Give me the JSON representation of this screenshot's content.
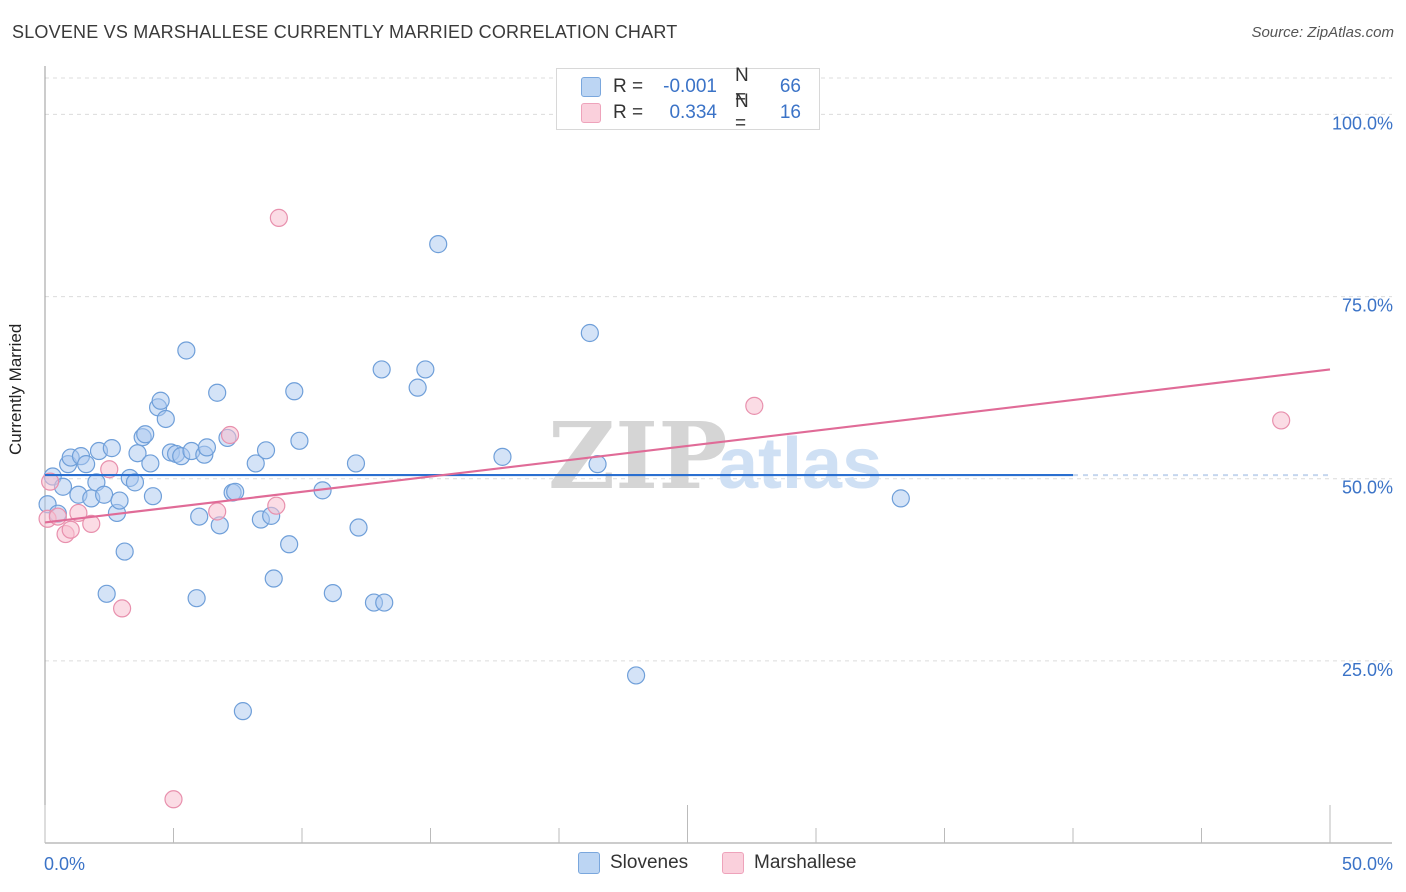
{
  "title": "SLOVENE VS MARSHALLESE CURRENTLY MARRIED CORRELATION CHART",
  "source": "Source: ZipAtlas.com",
  "watermark": {
    "zip": "ZIP",
    "atlas": "atlas"
  },
  "legend": {
    "rows": [
      {
        "r_label": "R =",
        "r_value": "-0.001",
        "n_label": "N =",
        "n_value": "66"
      },
      {
        "r_label": "R =",
        "r_value": "0.334",
        "n_label": "N =",
        "n_value": "16"
      }
    ]
  },
  "bottom_legend": {
    "series1": "Slovenes",
    "series2": "Marshallese"
  },
  "colors": {
    "slovenes_fill": "#a9c8f0",
    "slovenes_stroke": "#6f9fd9",
    "slovenes_line": "#2a6fd0",
    "marshallese_fill": "#f7c0d0",
    "marshallese_stroke": "#e890ad",
    "marshallese_line": "#e06b97",
    "axis_label": "#3b73c7"
  },
  "chart_data": {
    "type": "scatter",
    "title": "SLOVENE VS MARSHALLESE CURRENTLY MARRIED CORRELATION CHART",
    "xlabel": "",
    "ylabel": "Currently Married",
    "xlim": [
      0,
      50
    ],
    "ylim": [
      0,
      105
    ],
    "x_tick_labels": [
      "0.0%",
      "50.0%"
    ],
    "y_ticks": [
      25,
      50,
      75,
      100
    ],
    "y_tick_labels": [
      "25.0%",
      "50.0%",
      "75.0%",
      "100.0%"
    ],
    "grid": true,
    "legend_position": "top-center",
    "series": [
      {
        "name": "Slovenes",
        "r": -0.001,
        "n": 66,
        "trend": {
          "x0": 0,
          "y0": 50.5,
          "x1": 40,
          "y1": 50.5,
          "dashed_to": 50
        },
        "points": [
          [
            0.1,
            46.5
          ],
          [
            0.3,
            50.3
          ],
          [
            0.5,
            45.2
          ],
          [
            0.7,
            48.9
          ],
          [
            0.9,
            52.0
          ],
          [
            1.0,
            52.9
          ],
          [
            1.3,
            47.8
          ],
          [
            1.4,
            53.1
          ],
          [
            1.6,
            52.0
          ],
          [
            1.8,
            47.3
          ],
          [
            2.0,
            49.5
          ],
          [
            2.1,
            53.8
          ],
          [
            2.3,
            47.8
          ],
          [
            2.4,
            34.2
          ],
          [
            2.6,
            54.2
          ],
          [
            2.8,
            45.3
          ],
          [
            2.9,
            47.0
          ],
          [
            3.1,
            40.0
          ],
          [
            3.3,
            50.1
          ],
          [
            3.5,
            49.5
          ],
          [
            3.6,
            53.5
          ],
          [
            3.8,
            55.7
          ],
          [
            3.9,
            56.1
          ],
          [
            4.1,
            52.1
          ],
          [
            4.2,
            47.6
          ],
          [
            4.4,
            59.8
          ],
          [
            4.5,
            60.7
          ],
          [
            4.7,
            58.2
          ],
          [
            4.9,
            53.6
          ],
          [
            5.1,
            53.4
          ],
          [
            5.3,
            53.1
          ],
          [
            5.5,
            67.6
          ],
          [
            5.7,
            53.8
          ],
          [
            5.9,
            33.6
          ],
          [
            6.0,
            44.8
          ],
          [
            6.2,
            53.3
          ],
          [
            6.3,
            54.3
          ],
          [
            6.7,
            61.8
          ],
          [
            6.8,
            43.6
          ],
          [
            7.1,
            55.6
          ],
          [
            7.3,
            48.1
          ],
          [
            7.4,
            48.2
          ],
          [
            7.7,
            18.1
          ],
          [
            8.2,
            52.1
          ],
          [
            8.4,
            44.4
          ],
          [
            8.6,
            53.9
          ],
          [
            8.8,
            44.9
          ],
          [
            8.9,
            36.3
          ],
          [
            9.5,
            41.0
          ],
          [
            9.7,
            62.0
          ],
          [
            9.9,
            55.2
          ],
          [
            10.8,
            48.4
          ],
          [
            11.2,
            34.3
          ],
          [
            12.1,
            52.1
          ],
          [
            12.2,
            43.3
          ],
          [
            12.8,
            33.0
          ],
          [
            13.1,
            65.0
          ],
          [
            13.2,
            33.0
          ],
          [
            14.5,
            62.5
          ],
          [
            14.8,
            65.0
          ],
          [
            15.3,
            82.2
          ],
          [
            17.8,
            53.0
          ],
          [
            21.2,
            70.0
          ],
          [
            21.5,
            52.0
          ],
          [
            23.0,
            23.0
          ],
          [
            33.3,
            47.3
          ]
        ]
      },
      {
        "name": "Marshallese",
        "r": 0.334,
        "n": 16,
        "trend": {
          "x0": 0,
          "y0": 44.0,
          "x1": 50,
          "y1": 65.0
        },
        "points": [
          [
            0.1,
            44.5
          ],
          [
            0.2,
            49.6
          ],
          [
            0.5,
            44.8
          ],
          [
            0.8,
            42.4
          ],
          [
            1.0,
            43.0
          ],
          [
            1.3,
            45.3
          ],
          [
            1.8,
            43.8
          ],
          [
            2.5,
            51.3
          ],
          [
            3.0,
            32.2
          ],
          [
            5.0,
            6.0
          ],
          [
            6.7,
            45.5
          ],
          [
            7.2,
            56.0
          ],
          [
            9.0,
            46.3
          ],
          [
            9.1,
            85.8
          ],
          [
            27.6,
            60.0
          ],
          [
            48.1,
            58.0
          ]
        ]
      }
    ]
  }
}
